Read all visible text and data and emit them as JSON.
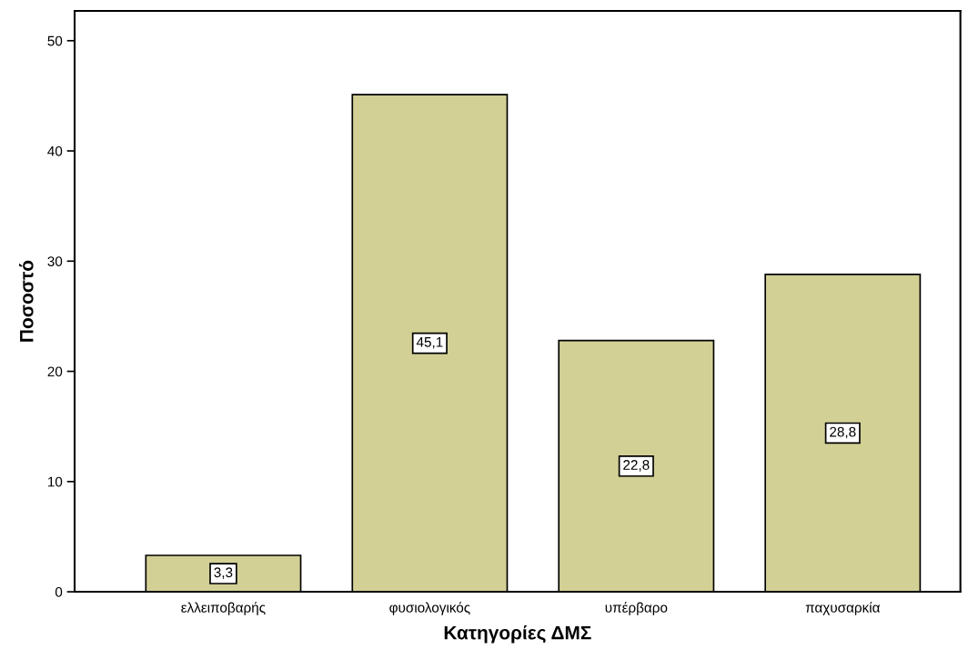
{
  "chart_data": {
    "type": "bar",
    "xlabel": "Κατηγορίες ΔΜΣ",
    "ylabel": "Ποσοστό",
    "categories": [
      "ελλειποβαρής",
      "φυσιολογικός",
      "υπέρβαρο",
      "παχυσαρκία"
    ],
    "values": [
      3.3,
      45.1,
      22.8,
      28.8
    ],
    "color": "#d3d096",
    "value_labels": [
      "3,3",
      "45,1",
      "22,8",
      "28,8"
    ],
    "ylim": [
      0,
      52.7
    ],
    "yticks": [
      0,
      10,
      20,
      30,
      40,
      50
    ],
    "grid": false,
    "legend": false
  }
}
